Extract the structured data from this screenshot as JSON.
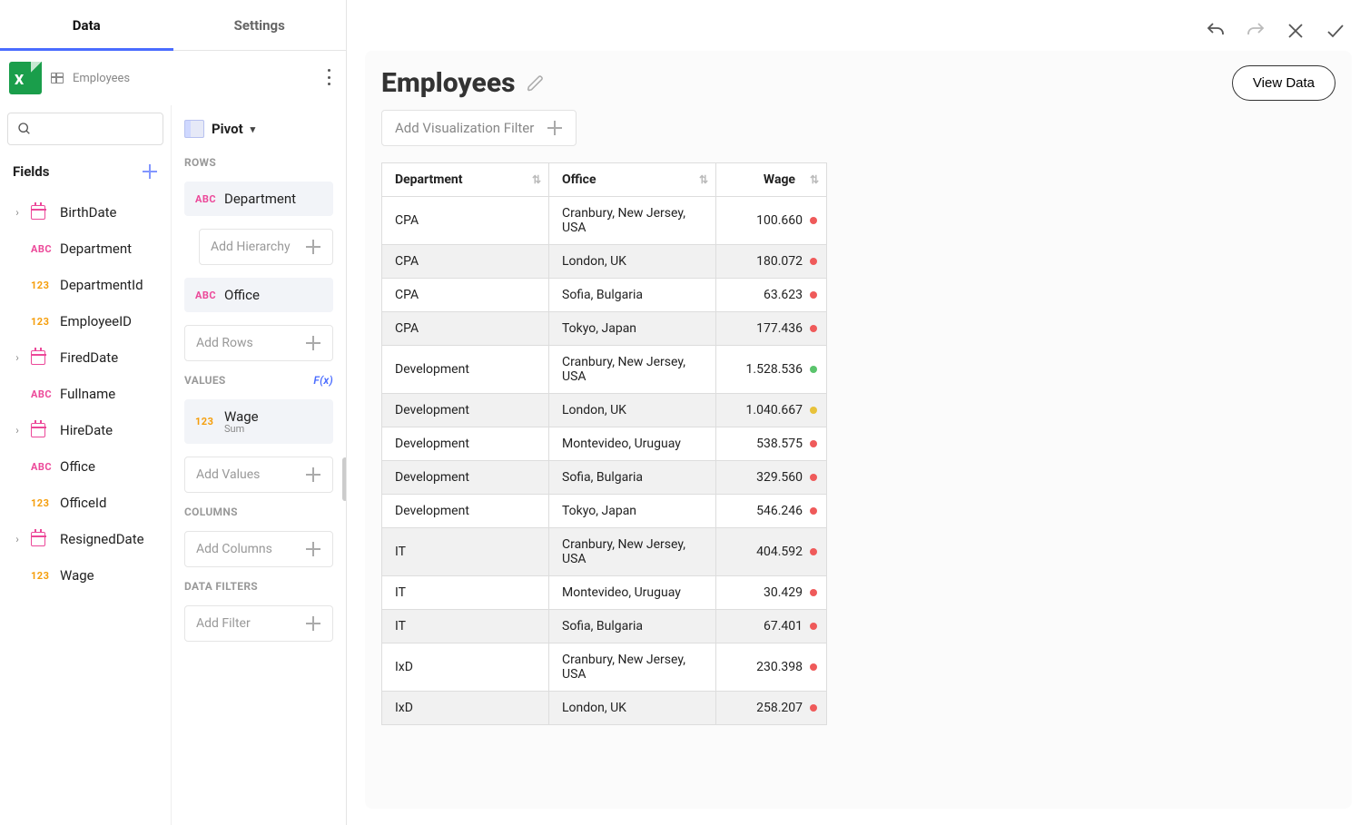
{
  "tabs": {
    "data": "Data",
    "settings": "Settings",
    "active": "data"
  },
  "source": {
    "name": "Employees"
  },
  "fields": {
    "header": "Fields",
    "items": [
      {
        "name": "BirthDate",
        "type": "date",
        "expandable": true
      },
      {
        "name": "Department",
        "type": "abc",
        "expandable": false
      },
      {
        "name": "DepartmentId",
        "type": "123",
        "expandable": false
      },
      {
        "name": "EmployeeID",
        "type": "123",
        "expandable": false
      },
      {
        "name": "FiredDate",
        "type": "date",
        "expandable": true
      },
      {
        "name": "Fullname",
        "type": "abc",
        "expandable": false
      },
      {
        "name": "HireDate",
        "type": "date",
        "expandable": true
      },
      {
        "name": "Office",
        "type": "abc",
        "expandable": false
      },
      {
        "name": "OfficeId",
        "type": "123",
        "expandable": false
      },
      {
        "name": "ResignedDate",
        "type": "date",
        "expandable": true
      },
      {
        "name": "Wage",
        "type": "123",
        "expandable": false
      }
    ]
  },
  "pivot": {
    "label": "Pivot",
    "sections": {
      "rows": {
        "label": "ROWS",
        "chips": [
          {
            "name": "Department",
            "type": "abc"
          },
          {
            "name": "Office",
            "type": "abc"
          }
        ],
        "hierarchy_placeholder": "Add Hierarchy",
        "placeholder": "Add Rows"
      },
      "values": {
        "label": "VALUES",
        "fx": "F(x)",
        "chips": [
          {
            "name": "Wage",
            "sub": "Sum",
            "type": "123"
          }
        ],
        "placeholder": "Add Values"
      },
      "columns": {
        "label": "COLUMNS",
        "placeholder": "Add Columns"
      },
      "dataFilters": {
        "label": "DATA FILTERS",
        "placeholder": "Add Filter"
      }
    }
  },
  "main": {
    "title": "Employees",
    "viewData": "View Data",
    "filterPlaceholder": "Add Visualization Filter",
    "columns": [
      {
        "label": "Department"
      },
      {
        "label": "Office"
      },
      {
        "label": "Wage"
      }
    ],
    "dotColors": {
      "red": "#ef5a5a",
      "green": "#5ac46c",
      "yellow": "#e8c23a"
    },
    "rows": [
      {
        "dept": "CPA",
        "office": "Cranbury, New Jersey, USA",
        "wage": "100.660",
        "dot": "red"
      },
      {
        "dept": "CPA",
        "office": "London, UK",
        "wage": "180.072",
        "dot": "red"
      },
      {
        "dept": "CPA",
        "office": "Sofia, Bulgaria",
        "wage": "63.623",
        "dot": "red"
      },
      {
        "dept": "CPA",
        "office": "Tokyo, Japan",
        "wage": "177.436",
        "dot": "red"
      },
      {
        "dept": "Development",
        "office": "Cranbury, New Jersey, USA",
        "wage": "1.528.536",
        "dot": "green"
      },
      {
        "dept": "Development",
        "office": "London, UK",
        "wage": "1.040.667",
        "dot": "yellow"
      },
      {
        "dept": "Development",
        "office": "Montevideo, Uruguay",
        "wage": "538.575",
        "dot": "red"
      },
      {
        "dept": "Development",
        "office": "Sofia, Bulgaria",
        "wage": "329.560",
        "dot": "red"
      },
      {
        "dept": "Development",
        "office": "Tokyo, Japan",
        "wage": "546.246",
        "dot": "red"
      },
      {
        "dept": "IT",
        "office": "Cranbury, New Jersey, USA",
        "wage": "404.592",
        "dot": "red"
      },
      {
        "dept": "IT",
        "office": "Montevideo, Uruguay",
        "wage": "30.429",
        "dot": "red"
      },
      {
        "dept": "IT",
        "office": "Sofia, Bulgaria",
        "wage": "67.401",
        "dot": "red"
      },
      {
        "dept": "IxD",
        "office": "Cranbury, New Jersey, USA",
        "wage": "230.398",
        "dot": "red"
      },
      {
        "dept": "IxD",
        "office": "London, UK",
        "wage": "258.207",
        "dot": "red"
      }
    ]
  }
}
